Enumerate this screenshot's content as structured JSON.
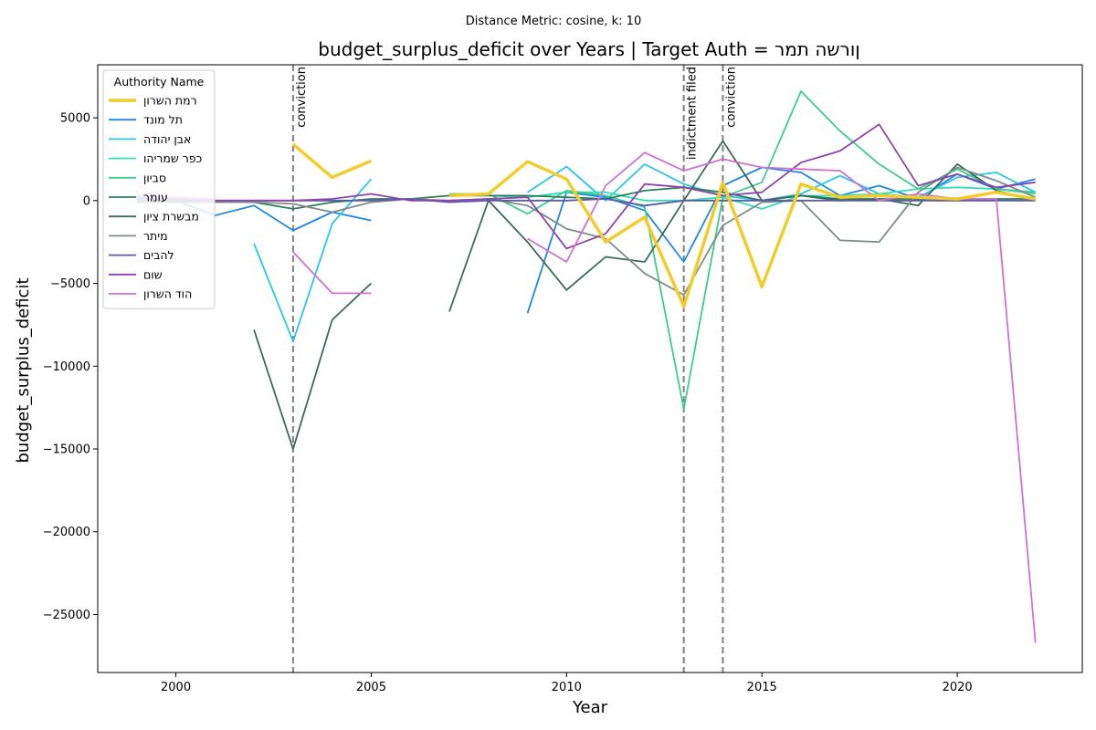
{
  "suptitle": "Distance Metric: cosine, k: 10",
  "chart_data": {
    "type": "line",
    "title": "budget_surplus_deficit over Years | Target Auth = ןורשה תמר",
    "xlabel": "Year",
    "ylabel": "budget_surplus_deficit",
    "xlim": [
      1998,
      2023.2
    ],
    "ylim": [
      -28500,
      8200
    ],
    "xticks": [
      2000,
      2005,
      2010,
      2015,
      2020
    ],
    "yticks": [
      5000,
      0,
      -5000,
      -10000,
      -15000,
      -20000,
      -25000
    ],
    "grid": false,
    "legend": {
      "title": "Authority Name",
      "placement": "top-left"
    },
    "events": [
      {
        "year": 2003,
        "label": "conviction"
      },
      {
        "year": 2013,
        "label": "indictment filed"
      },
      {
        "year": 2014,
        "label": "conviction"
      }
    ],
    "series": [
      {
        "name": "ןורשה תמר",
        "color": "#f2cd2a",
        "target": true,
        "points": [
          [
            2003,
            3400
          ],
          [
            2004,
            1400
          ],
          [
            2005,
            2400
          ],
          [
            null,
            null
          ],
          [
            2007,
            300
          ],
          [
            2008,
            400
          ],
          [
            2009,
            2350
          ],
          [
            2010,
            1300
          ],
          [
            2011,
            -2500
          ],
          [
            2012,
            -1000
          ],
          [
            2013,
            -6400
          ],
          [
            2014,
            1100
          ],
          [
            2015,
            -5200
          ],
          [
            2016,
            1000
          ],
          [
            2017,
            200
          ],
          [
            2018,
            300
          ],
          [
            2019,
            200
          ],
          [
            2020,
            100
          ],
          [
            2021,
            500
          ],
          [
            2022,
            100
          ]
        ]
      },
      {
        "name": "דנומ לת",
        "color": "#1e88e5",
        "points": [
          [
            1999,
            200
          ],
          [
            2000,
            0
          ],
          [
            2001,
            -900
          ],
          [
            2002,
            -300
          ],
          [
            2003,
            -1800
          ],
          [
            2004,
            -700
          ],
          [
            2005,
            -1200
          ],
          [
            null,
            null
          ],
          [
            2009,
            -6800
          ],
          [
            2010,
            500
          ],
          [
            2011,
            200
          ],
          [
            2012,
            -600
          ],
          [
            2013,
            -3700
          ],
          [
            2014,
            900
          ],
          [
            2015,
            2000
          ],
          [
            2016,
            1700
          ],
          [
            2017,
            300
          ],
          [
            2018,
            900
          ],
          [
            2019,
            100
          ],
          [
            2020,
            1600
          ],
          [
            2021,
            700
          ],
          [
            2022,
            1300
          ]
        ]
      },
      {
        "name": "הדוהי ןבא",
        "color": "#29c6e8",
        "points": [
          [
            2002,
            -2600
          ],
          [
            2003,
            -8500
          ],
          [
            2004,
            -1400
          ],
          [
            2005,
            1300
          ],
          [
            null,
            null
          ],
          [
            2009,
            500
          ],
          [
            2010,
            2050
          ],
          [
            2011,
            0
          ],
          [
            2012,
            2200
          ],
          [
            2013,
            1000
          ],
          [
            2014,
            300
          ],
          [
            2015,
            0
          ],
          [
            2016,
            400
          ],
          [
            2017,
            1500
          ],
          [
            2018,
            400
          ],
          [
            2019,
            200
          ],
          [
            2020,
            1400
          ],
          [
            2021,
            1700
          ],
          [
            2022,
            500
          ]
        ]
      },
      {
        "name": "והירמש רפכ",
        "color": "#2fe0b6",
        "points": [
          [
            2008,
            300
          ],
          [
            2009,
            200
          ],
          [
            2010,
            500
          ],
          [
            2011,
            500
          ],
          [
            2012,
            0
          ],
          [
            2013,
            0
          ],
          [
            2014,
            200
          ],
          [
            2015,
            -500
          ],
          [
            2016,
            300
          ],
          [
            2017,
            300
          ],
          [
            2018,
            400
          ],
          [
            2019,
            700
          ],
          [
            2020,
            800
          ],
          [
            2021,
            700
          ],
          [
            2022,
            400
          ]
        ]
      },
      {
        "name": "ןויבס",
        "color": "#3ccc8c",
        "points": [
          [
            2007,
            400
          ],
          [
            2008,
            400
          ],
          [
            2009,
            -800
          ],
          [
            2010,
            600
          ],
          [
            2011,
            300
          ],
          [
            2012,
            -400
          ],
          [
            2013,
            -12600
          ],
          [
            2014,
            200
          ],
          [
            2015,
            1100
          ],
          [
            2016,
            6600
          ],
          [
            2017,
            4200
          ],
          [
            2018,
            2200
          ],
          [
            2019,
            700
          ],
          [
            2020,
            1900
          ],
          [
            2021,
            700
          ],
          [
            2022,
            500
          ]
        ]
      },
      {
        "name": "רמוע",
        "color": "#2e7d5a",
        "points": [
          [
            1999,
            -100
          ],
          [
            2000,
            -100
          ],
          [
            2001,
            -100
          ],
          [
            2002,
            -100
          ],
          [
            2003,
            -500
          ],
          [
            2004,
            -100
          ],
          [
            2005,
            100
          ],
          [
            2006,
            100
          ],
          [
            2007,
            300
          ],
          [
            2008,
            300
          ],
          [
            2009,
            300
          ],
          [
            2010,
            200
          ],
          [
            2011,
            100
          ],
          [
            2012,
            600
          ],
          [
            2013,
            800
          ],
          [
            2014,
            500
          ],
          [
            2015,
            0
          ],
          [
            2016,
            300
          ],
          [
            2017,
            100
          ],
          [
            2018,
            100
          ],
          [
            2019,
            100
          ],
          [
            2020,
            100
          ],
          [
            2021,
            100
          ],
          [
            2022,
            100
          ]
        ]
      },
      {
        "name": "ןויצ תרשבמ",
        "color": "#3a6b58",
        "points": [
          [
            2002,
            -7800
          ],
          [
            2003,
            -15000
          ],
          [
            2004,
            -7200
          ],
          [
            2005,
            -5000
          ],
          [
            null,
            null
          ],
          [
            2007,
            -6700
          ],
          [
            2008,
            0
          ],
          [
            2009,
            -2500
          ],
          [
            2010,
            -5400
          ],
          [
            2011,
            -3400
          ],
          [
            2012,
            -3700
          ],
          [
            2013,
            0
          ],
          [
            2014,
            3600
          ],
          [
            2015,
            0
          ],
          [
            2016,
            300
          ],
          [
            2017,
            0
          ],
          [
            2018,
            100
          ],
          [
            2019,
            -300
          ],
          [
            2020,
            2200
          ],
          [
            2021,
            600
          ],
          [
            2022,
            0
          ]
        ]
      },
      {
        "name": "רתימ",
        "color": "#7f8c8a",
        "points": [
          [
            1999,
            100
          ],
          [
            2000,
            0
          ],
          [
            2001,
            -100
          ],
          [
            2002,
            -100
          ],
          [
            2003,
            -200
          ],
          [
            2004,
            -700
          ],
          [
            2005,
            -100
          ],
          [
            2006,
            100
          ],
          [
            2007,
            0
          ],
          [
            2008,
            100
          ],
          [
            2009,
            -300
          ],
          [
            2010,
            -1700
          ],
          [
            2011,
            -2300
          ],
          [
            2012,
            -4400
          ],
          [
            2013,
            -5700
          ],
          [
            2014,
            -1500
          ],
          [
            2015,
            -100
          ],
          [
            2016,
            0
          ],
          [
            2017,
            -2400
          ],
          [
            2018,
            -2500
          ],
          [
            2019,
            500
          ],
          [
            2020,
            2000
          ],
          [
            2021,
            1200
          ],
          [
            2022,
            200
          ]
        ]
      },
      {
        "name": "םיבהל",
        "color": "#5a5aad",
        "points": [
          [
            1999,
            0
          ],
          [
            2000,
            0
          ],
          [
            2001,
            0
          ],
          [
            2002,
            0
          ],
          [
            2003,
            0
          ],
          [
            2004,
            0
          ],
          [
            2005,
            0
          ],
          [
            2006,
            100
          ],
          [
            2007,
            -100
          ],
          [
            2008,
            0
          ],
          [
            2009,
            0
          ],
          [
            2010,
            0
          ],
          [
            2011,
            100
          ],
          [
            2012,
            -300
          ],
          [
            2013,
            0
          ],
          [
            2014,
            0
          ],
          [
            2015,
            0
          ],
          [
            2016,
            0
          ],
          [
            2017,
            0
          ],
          [
            2018,
            0
          ],
          [
            2019,
            0
          ],
          [
            2020,
            0
          ],
          [
            2021,
            0
          ],
          [
            2022,
            0
          ]
        ]
      },
      {
        "name": "םוש",
        "color": "#8e44ad",
        "points": [
          [
            1999,
            100
          ],
          [
            2000,
            100
          ],
          [
            2001,
            0
          ],
          [
            2002,
            0
          ],
          [
            2003,
            0
          ],
          [
            2004,
            100
          ],
          [
            2005,
            400
          ],
          [
            2006,
            0
          ],
          [
            2007,
            0
          ],
          [
            2008,
            100
          ],
          [
            2009,
            200
          ],
          [
            2010,
            -2900
          ],
          [
            2011,
            -2000
          ],
          [
            2012,
            1000
          ],
          [
            2013,
            800
          ],
          [
            2014,
            300
          ],
          [
            2015,
            500
          ],
          [
            2016,
            2300
          ],
          [
            2017,
            3000
          ],
          [
            2018,
            4600
          ],
          [
            2019,
            900
          ],
          [
            2020,
            1600
          ],
          [
            2021,
            800
          ],
          [
            2022,
            1100
          ]
        ]
      },
      {
        "name": "ןורשה דוה",
        "color": "#d070d0",
        "points": [
          [
            1999,
            300
          ],
          [
            2000,
            200
          ],
          [
            2001,
            100
          ],
          [
            null,
            null
          ],
          [
            2003,
            -3100
          ],
          [
            2004,
            -5600
          ],
          [
            2005,
            -5600
          ],
          [
            null,
            null
          ],
          [
            2009,
            -2300
          ],
          [
            2010,
            -3700
          ],
          [
            2011,
            900
          ],
          [
            2012,
            2900
          ],
          [
            2013,
            1800
          ],
          [
            2014,
            2500
          ],
          [
            2015,
            2000
          ],
          [
            2016,
            1900
          ],
          [
            2017,
            1800
          ],
          [
            2018,
            0
          ],
          [
            2019,
            400
          ],
          [
            2020,
            100
          ],
          [
            2021,
            100
          ],
          [
            2022,
            -26700
          ]
        ]
      }
    ]
  }
}
